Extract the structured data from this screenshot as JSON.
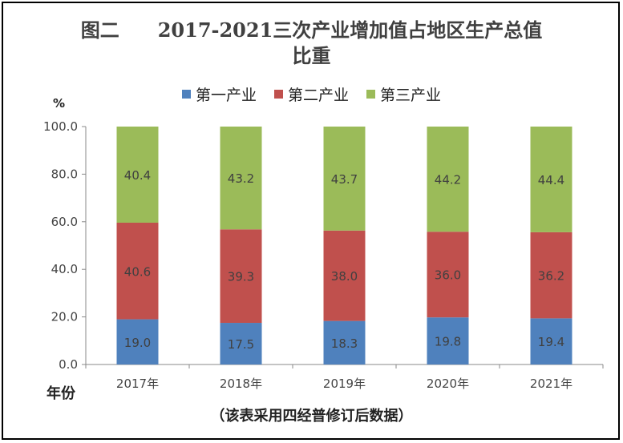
{
  "chart_data": {
    "type": "bar",
    "stacked": true,
    "title_line1": "图二　　2017-2021三次产业增加值占地区生产总值",
    "title_line2": "比重",
    "ylabel": "%",
    "xlabel": "年份",
    "note": "（该表采用四经普修订后数据）",
    "categories": [
      "2017年",
      "2018年",
      "2019年",
      "2020年",
      "2021年"
    ],
    "ylim": [
      0,
      100
    ],
    "yticks": [
      "0.0",
      "20.0",
      "40.0",
      "60.0",
      "80.0",
      "100.0"
    ],
    "legend_position": "top",
    "series": [
      {
        "name": "第一产业",
        "color": "#4F81BD",
        "values": [
          19.0,
          17.5,
          18.3,
          19.8,
          19.4
        ],
        "labels": [
          "19.0",
          "17.5",
          "18.3",
          "19.8",
          "19.4"
        ]
      },
      {
        "name": "第二产业",
        "color": "#C0504D",
        "values": [
          40.6,
          39.3,
          38.0,
          36.0,
          36.2
        ],
        "labels": [
          "40.6",
          "39.3",
          "38.0",
          "36.0",
          "36.2"
        ]
      },
      {
        "name": "第三产业",
        "color": "#9BBB59",
        "values": [
          40.4,
          43.2,
          43.7,
          44.2,
          44.4
        ],
        "labels": [
          "40.4",
          "43.2",
          "43.7",
          "44.2",
          "44.4"
        ]
      }
    ]
  }
}
